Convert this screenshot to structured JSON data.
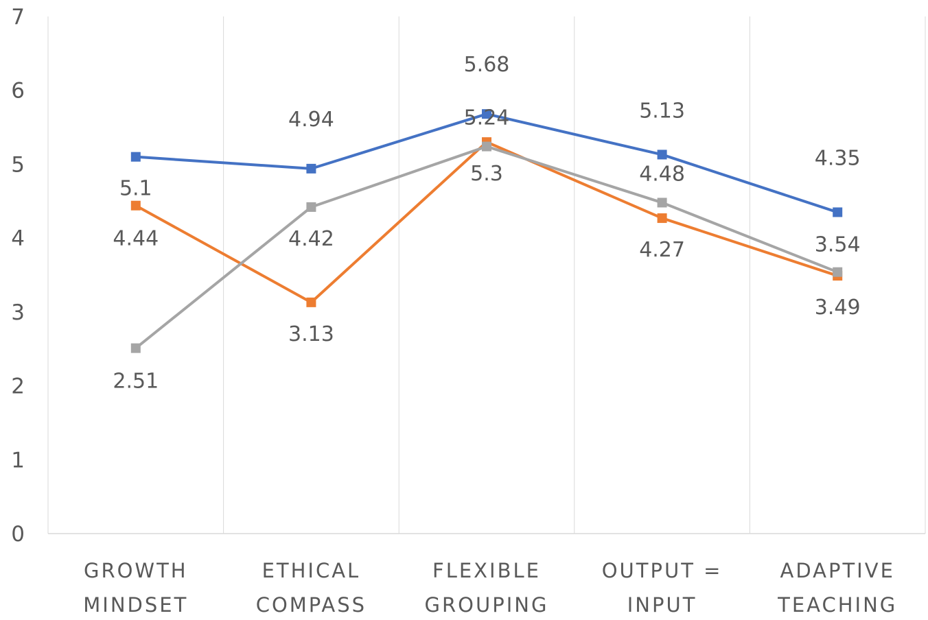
{
  "chart_data": {
    "type": "line",
    "title": "",
    "xlabel": "",
    "ylabel": "",
    "ylim": [
      0,
      7
    ],
    "yticks": [
      "0",
      "1",
      "2",
      "3",
      "4",
      "5",
      "6",
      "7"
    ],
    "grid": "vertical",
    "legend": "none",
    "categories": [
      [
        "GROWTH",
        "MINDSET"
      ],
      [
        "ETHICAL",
        "COMPASS"
      ],
      [
        "FLEXIBLE",
        "GROUPING"
      ],
      [
        "OUTPUT =",
        "INPUT"
      ],
      [
        "ADAPTIVE",
        "TEACHING"
      ]
    ],
    "series": [
      {
        "color": "#4472C4",
        "values": [
          5.1,
          4.94,
          5.68,
          5.13,
          4.35
        ],
        "labels": [
          "5.1",
          "4.94",
          "5.68",
          "5.13",
          "4.35"
        ]
      },
      {
        "color": "#ED7D31",
        "values": [
          4.44,
          3.13,
          5.3,
          4.27,
          3.49
        ],
        "labels": [
          "4.44",
          "3.13",
          "5.3",
          "4.27",
          "3.49"
        ]
      },
      {
        "color": "#A5A5A5",
        "values": [
          2.51,
          4.42,
          5.24,
          4.48,
          3.54
        ],
        "labels": [
          "2.51",
          "4.42",
          "5.24",
          "4.48",
          "3.54"
        ]
      }
    ]
  }
}
